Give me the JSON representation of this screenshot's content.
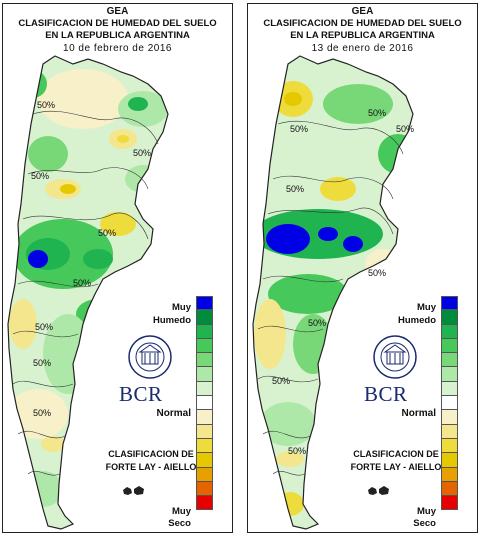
{
  "panels": [
    {
      "header": {
        "org": "GEA",
        "line1": "CLASIFICACION DE HUMEDAD DEL SUELO",
        "line2": "EN LA REPUBLICA ARGENTINA",
        "date": "10 de febrero de 2016"
      },
      "contour_labels": [
        "50%",
        "50%",
        "50%",
        "50%",
        "50%",
        "50%",
        "50%",
        "50%"
      ]
    },
    {
      "header": {
        "org": "GEA",
        "line1": "CLASIFICACION DE HUMEDAD DEL SUELO",
        "line2": "EN LA REPUBLICA ARGENTINA",
        "date": "13 de enero de 2016"
      },
      "contour_labels": [
        "50%",
        "50%",
        "50%",
        "50%",
        "50%",
        "50%",
        "50%",
        "50%"
      ]
    }
  ],
  "legend": {
    "top_label": "Muy Humedo",
    "middle_label": "Normal",
    "bottom_label": "Muy Seco",
    "colors": [
      "#0000e6",
      "#008c3c",
      "#1fb450",
      "#46c85a",
      "#78d878",
      "#aee8a8",
      "#d8f2d0",
      "#ffffff",
      "#f8f0c8",
      "#f4e68c",
      "#eedc3c",
      "#e6c800",
      "#e6a000",
      "#e66400",
      "#e60000"
    ]
  },
  "brand": {
    "name": "BCR",
    "seal_text": "BOLSA DE COMERCIO DE ROSARIO"
  },
  "method": {
    "line1": "CLASIFICACION DE",
    "line2": "FORTE LAY - AIELLO"
  }
}
